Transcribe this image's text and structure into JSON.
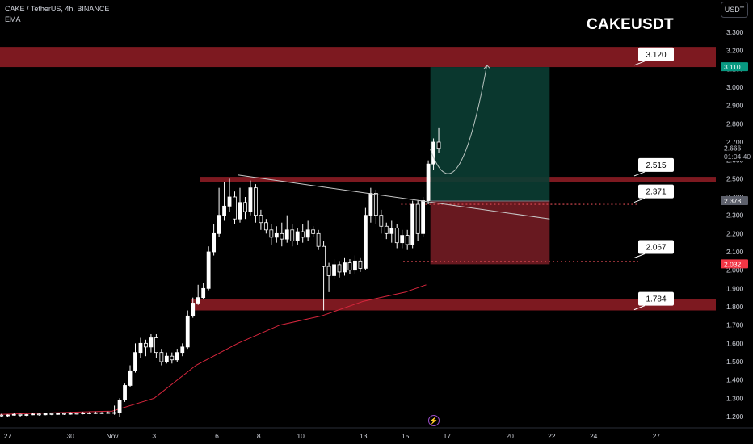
{
  "header": {
    "symbol_line": "CAKE / TetherUS, 4h, BINANCE",
    "indicator": "EMA",
    "currency_button": "USDT"
  },
  "overlay_title": "CAKEUSDT",
  "price_axis": {
    "ticks": [
      "3.300",
      "3.200",
      "3.100",
      "3.000",
      "2.900",
      "2.800",
      "2.700",
      "2.600",
      "2.500",
      "2.400",
      "2.300",
      "2.200",
      "2.100",
      "2.000",
      "1.900",
      "1.800",
      "1.700",
      "1.600",
      "1.500",
      "1.400",
      "1.300",
      "1.200"
    ],
    "tick_values": [
      3.3,
      3.2,
      3.1,
      3.0,
      2.9,
      2.8,
      2.7,
      2.6,
      2.5,
      2.4,
      2.3,
      2.2,
      2.1,
      2.0,
      1.9,
      1.8,
      1.7,
      1.6,
      1.5,
      1.4,
      1.3,
      1.2
    ],
    "badges": [
      {
        "label": "3.110",
        "value": 3.11,
        "bg": "#089981",
        "fg": "#ffffff"
      },
      {
        "label": "2.666",
        "value": 2.666,
        "bg": "#000000",
        "fg": "#d1d4dc"
      },
      {
        "label": "01:04:40",
        "value": 2.62,
        "bg": "#000000",
        "fg": "#b2b5be"
      },
      {
        "label": "2.378",
        "value": 2.378,
        "bg": "#5d606b",
        "fg": "#ffffff"
      },
      {
        "label": "2.032",
        "value": 2.032,
        "bg": "#f23645",
        "fg": "#ffffff"
      }
    ]
  },
  "time_axis": {
    "labels": [
      "27",
      "30",
      "Nov",
      "3",
      "6",
      "8",
      "10",
      "13",
      "15",
      "17",
      "20",
      "22",
      "24",
      "27"
    ],
    "days": [
      -5,
      -2,
      0,
      2,
      5,
      7,
      9,
      12,
      14,
      16,
      19,
      21,
      23,
      26
    ]
  },
  "chart_data": {
    "type": "candlestick",
    "instrument": "CAKE / TetherUS",
    "timeframe": "4h",
    "exchange": "BINANCE",
    "y_range": [
      1.15,
      3.35
    ],
    "zones": [
      {
        "from": 3.11,
        "to": 3.22,
        "color": "#8b1c24"
      },
      {
        "from": 2.48,
        "to": 2.51,
        "color": "#8b1c24"
      },
      {
        "from": 1.78,
        "to": 1.84,
        "color": "#8b1c24"
      }
    ],
    "callouts": [
      {
        "label": "3.120",
        "value": 3.12
      },
      {
        "label": "2.515",
        "value": 2.515
      },
      {
        "label": "2.371",
        "value": 2.371
      },
      {
        "label": "2.067",
        "value": 2.067
      },
      {
        "label": "1.784",
        "value": 1.784
      }
    ],
    "position": {
      "entry": 2.378,
      "target": 3.11,
      "stop": 2.032,
      "from_day": 15.2,
      "to_day": 20.9
    },
    "dotted_levels": [
      {
        "value": 2.36,
        "from_day": 13.8
      },
      {
        "value": 2.047,
        "from_day": 13.9
      }
    ],
    "trendline": {
      "start": [
        6.0,
        2.52
      ],
      "end": [
        20.9,
        2.28
      ]
    },
    "projection": [
      [
        15.2,
        2.66
      ],
      [
        16.5,
        2.37
      ],
      [
        17.9,
        3.12
      ]
    ],
    "ema": [
      [
        -5.9,
        1.21
      ],
      [
        0,
        1.23
      ],
      [
        2,
        1.3
      ],
      [
        4,
        1.48
      ],
      [
        6,
        1.6
      ],
      [
        8,
        1.7
      ],
      [
        10,
        1.75
      ],
      [
        12,
        1.83
      ],
      [
        14,
        1.88
      ],
      [
        15,
        1.92
      ]
    ],
    "candles": [
      [
        -5.9,
        1.2,
        1.203,
        1.23,
        1.19
      ],
      [
        -5.6,
        1.205,
        1.208,
        1.21,
        1.2
      ],
      [
        -5.3,
        1.208,
        1.204,
        1.215,
        1.2
      ],
      [
        -5.0,
        1.204,
        1.209,
        1.212,
        1.2
      ],
      [
        -4.7,
        1.209,
        1.212,
        1.22,
        1.205
      ],
      [
        -4.4,
        1.212,
        1.207,
        1.215,
        1.2
      ],
      [
        -4.1,
        1.207,
        1.211,
        1.214,
        1.203
      ],
      [
        -3.8,
        1.211,
        1.214,
        1.22,
        1.208
      ],
      [
        -3.5,
        1.214,
        1.21,
        1.217,
        1.205
      ],
      [
        -3.2,
        1.21,
        1.216,
        1.221,
        1.207
      ],
      [
        -2.9,
        1.216,
        1.212,
        1.219,
        1.208
      ],
      [
        -2.6,
        1.212,
        1.217,
        1.222,
        1.21
      ],
      [
        -2.3,
        1.217,
        1.213,
        1.22,
        1.209
      ],
      [
        -2.0,
        1.213,
        1.218,
        1.224,
        1.21
      ],
      [
        -1.7,
        1.218,
        1.215,
        1.222,
        1.211
      ],
      [
        -1.4,
        1.215,
        1.22,
        1.226,
        1.212
      ],
      [
        -1.1,
        1.22,
        1.217,
        1.224,
        1.213
      ],
      [
        -0.8,
        1.217,
        1.221,
        1.227,
        1.214
      ],
      [
        -0.5,
        1.221,
        1.218,
        1.225,
        1.214
      ],
      [
        -0.2,
        1.218,
        1.222,
        1.228,
        1.215
      ],
      [
        0.1,
        1.222,
        1.22,
        1.26,
        1.21
      ],
      [
        0.35,
        1.22,
        1.29,
        1.3,
        1.2
      ],
      [
        0.6,
        1.29,
        1.37,
        1.38,
        1.28
      ],
      [
        0.85,
        1.37,
        1.45,
        1.48,
        1.36
      ],
      [
        1.1,
        1.45,
        1.55,
        1.6,
        1.44
      ],
      [
        1.35,
        1.55,
        1.6,
        1.63,
        1.52
      ],
      [
        1.6,
        1.6,
        1.58,
        1.62,
        1.53
      ],
      [
        1.85,
        1.58,
        1.63,
        1.65,
        1.55
      ],
      [
        2.1,
        1.63,
        1.55,
        1.65,
        1.52
      ],
      [
        2.35,
        1.55,
        1.5,
        1.57,
        1.48
      ],
      [
        2.6,
        1.5,
        1.53,
        1.55,
        1.49
      ],
      [
        2.85,
        1.53,
        1.51,
        1.55,
        1.49
      ],
      [
        3.1,
        1.51,
        1.55,
        1.57,
        1.5
      ],
      [
        3.35,
        1.55,
        1.58,
        1.6,
        1.53
      ],
      [
        3.6,
        1.58,
        1.75,
        1.78,
        1.57
      ],
      [
        3.85,
        1.75,
        1.82,
        1.85,
        1.74
      ],
      [
        4.1,
        1.82,
        1.85,
        1.92,
        1.81
      ],
      [
        4.35,
        1.85,
        1.9,
        1.93,
        1.84
      ],
      [
        4.6,
        1.9,
        2.1,
        2.13,
        1.89
      ],
      [
        4.85,
        2.1,
        2.2,
        2.25,
        2.08
      ],
      [
        5.1,
        2.2,
        2.3,
        2.45,
        2.18
      ],
      [
        5.35,
        2.3,
        2.35,
        2.48,
        2.27
      ],
      [
        5.6,
        2.35,
        2.4,
        2.5,
        2.32
      ],
      [
        5.85,
        2.4,
        2.28,
        2.43,
        2.25
      ],
      [
        6.1,
        2.28,
        2.37,
        2.45,
        2.26
      ],
      [
        6.35,
        2.37,
        2.32,
        2.4,
        2.28
      ],
      [
        6.6,
        2.32,
        2.45,
        2.49,
        2.3
      ],
      [
        6.85,
        2.45,
        2.3,
        2.47,
        2.26
      ],
      [
        7.1,
        2.3,
        2.26,
        2.33,
        2.22
      ],
      [
        7.35,
        2.26,
        2.22,
        2.28,
        2.2
      ],
      [
        7.6,
        2.22,
        2.18,
        2.25,
        2.14
      ],
      [
        7.85,
        2.18,
        2.2,
        2.24,
        2.15
      ],
      [
        8.1,
        2.2,
        2.17,
        2.26,
        2.13
      ],
      [
        8.35,
        2.17,
        2.22,
        2.3,
        2.15
      ],
      [
        8.6,
        2.22,
        2.16,
        2.25,
        2.13
      ],
      [
        8.85,
        2.16,
        2.21,
        2.23,
        2.14
      ],
      [
        9.1,
        2.21,
        2.18,
        2.25,
        2.15
      ],
      [
        9.35,
        2.18,
        2.22,
        2.27,
        2.16
      ],
      [
        9.6,
        2.22,
        2.2,
        2.24,
        2.18
      ],
      [
        9.85,
        2.2,
        2.13,
        2.22,
        2.11
      ],
      [
        10.1,
        2.13,
        2.02,
        2.16,
        1.78
      ],
      [
        10.35,
        2.02,
        1.97,
        2.04,
        1.88
      ],
      [
        10.6,
        1.97,
        2.03,
        2.06,
        1.95
      ],
      [
        10.85,
        2.03,
        1.99,
        2.05,
        1.96
      ],
      [
        11.1,
        1.99,
        2.04,
        2.07,
        1.97
      ],
      [
        11.35,
        2.04,
        2.0,
        2.06,
        1.98
      ],
      [
        11.6,
        2.0,
        2.05,
        2.08,
        1.98
      ],
      [
        11.85,
        2.05,
        2.01,
        2.07,
        1.99
      ],
      [
        12.1,
        2.01,
        2.3,
        2.34,
        2.0
      ],
      [
        12.35,
        2.3,
        2.42,
        2.45,
        2.26
      ],
      [
        12.6,
        2.42,
        2.3,
        2.44,
        2.25
      ],
      [
        12.85,
        2.3,
        2.24,
        2.33,
        2.2
      ],
      [
        13.1,
        2.24,
        2.2,
        2.26,
        2.17
      ],
      [
        13.35,
        2.2,
        2.23,
        2.27,
        2.15
      ],
      [
        13.6,
        2.23,
        2.15,
        2.25,
        2.12
      ],
      [
        13.85,
        2.15,
        2.19,
        2.22,
        2.12
      ],
      [
        14.1,
        2.19,
        2.14,
        2.22,
        2.11
      ],
      [
        14.35,
        2.14,
        2.36,
        2.38,
        2.12
      ],
      [
        14.6,
        2.36,
        2.2,
        2.38,
        2.16
      ],
      [
        14.85,
        2.2,
        2.38,
        2.4,
        2.18
      ],
      [
        15.1,
        2.38,
        2.58,
        2.6,
        2.36
      ],
      [
        15.35,
        2.58,
        2.7,
        2.72,
        2.55
      ],
      [
        15.6,
        2.7,
        2.666,
        2.78,
        2.64
      ]
    ]
  }
}
